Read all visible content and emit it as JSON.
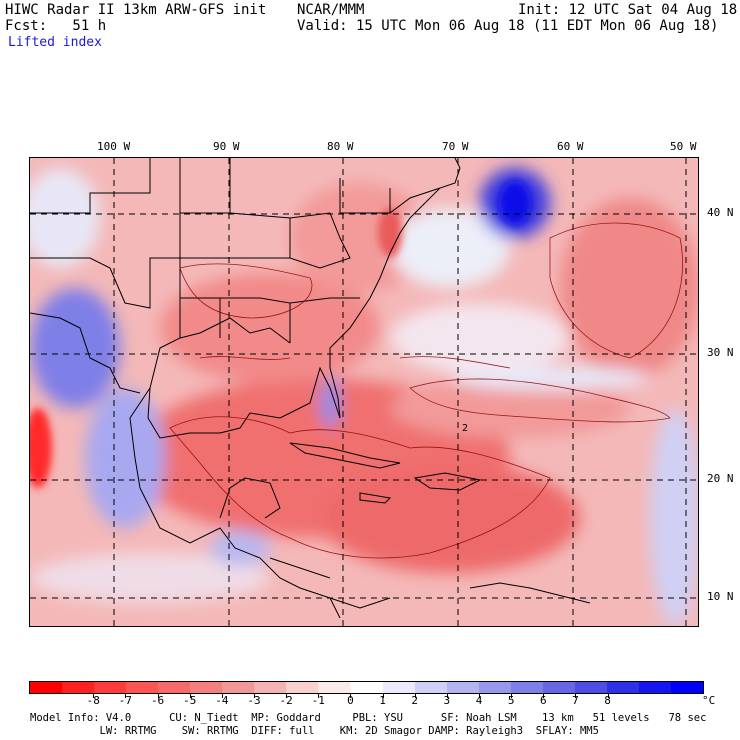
{
  "header": {
    "line1_left": "HIWC Radar II 13km ARW-GFS init",
    "line1_mid": "NCAR/MMM",
    "line1_right": "Init: 12 UTC Sat 04 Aug 18",
    "line2_left": "Fcst:   51 h",
    "line2_right": "Valid: 15 UTC Mon 06 Aug 18 (11 EDT Mon 06 Aug 18)",
    "field": "Lifted index"
  },
  "map": {
    "lon_labels": [
      "100 W",
      "90 W",
      "80 W",
      "70 W",
      "60 W",
      "50 W"
    ],
    "lat_labels": [
      "40 N",
      "30 N",
      "20 N",
      "10 N"
    ],
    "contour_label": "2"
  },
  "colorbar": {
    "labels": [
      "-8",
      "-7",
      "-6",
      "-5",
      "-4",
      "-3",
      "-2",
      "-1",
      "0",
      "1",
      "2",
      "3",
      "4",
      "5",
      "6",
      "7",
      "8"
    ],
    "unit": "°C",
    "colors": [
      "#ff0000",
      "#ff2020",
      "#ff3b3b",
      "#fd5454",
      "#f86a6a",
      "#f47f7f",
      "#f29797",
      "#f4b2b2",
      "#f8d0d0",
      "#fbeaea",
      "#ffffff",
      "#eaeafb",
      "#d0d0f6",
      "#b3b3f0",
      "#9797ec",
      "#7f7fe8",
      "#6666e6",
      "#4d4de4",
      "#3030e8",
      "#1515ef",
      "#0000ff"
    ]
  },
  "footer": {
    "line1": "Model Info: V4.0      CU: N_Tiedt  MP: Goddard     PBL: YSU      SF: Noah LSM    13 km   51 levels   78 sec",
    "line2": "           LW: RRTMG    SW: RRTMG  DIFF: full    KM: 2D Smagor DAMP: Rayleigh3  SFLAY: MM5"
  }
}
